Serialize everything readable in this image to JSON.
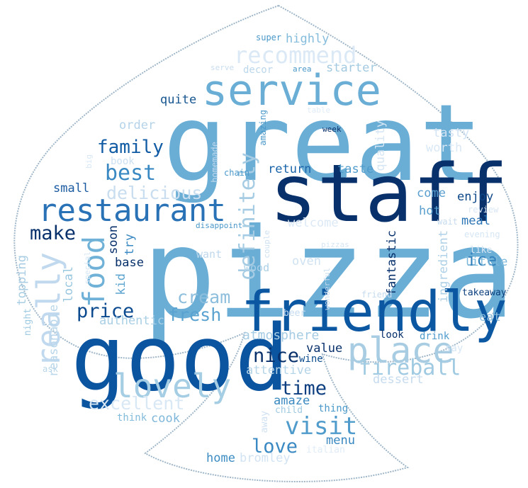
{
  "cloud": {
    "words": [
      {
        "text": "pizza",
        "color": "#6aaed6"
      },
      {
        "text": "great",
        "color": "#6aaed6"
      },
      {
        "text": "staff",
        "color": "#08306b"
      },
      {
        "text": "good",
        "color": "#0a54a0"
      },
      {
        "text": "friendly",
        "color": "#0b57a2"
      },
      {
        "text": "service",
        "color": "#6aaed6"
      },
      {
        "text": "restaurant",
        "color": "#2a72b6"
      },
      {
        "text": "place",
        "color": "#a8cde3"
      },
      {
        "text": "lovely",
        "color": "#a5cde3"
      },
      {
        "text": "recommend",
        "color": "#dbe9f6"
      },
      {
        "text": "really",
        "color": "#c1d9ee"
      },
      {
        "text": "food",
        "color": "#6fb1d7"
      },
      {
        "text": "definitely",
        "color": "#a6cce4"
      },
      {
        "text": "fireball",
        "color": "#9fcae1"
      },
      {
        "text": "visit",
        "color": "#4f9bcb"
      },
      {
        "text": "time",
        "color": "#0c3e80"
      },
      {
        "text": "excellent",
        "color": "#d9e8f5"
      },
      {
        "text": "nice",
        "color": "#08306b"
      },
      {
        "text": "price",
        "color": "#0c4a8f"
      },
      {
        "text": "best",
        "color": "#3a89c2"
      },
      {
        "text": "delicious",
        "color": "#c8ddef"
      },
      {
        "text": "family",
        "color": "#105ba4"
      },
      {
        "text": "make",
        "color": "#08306b"
      },
      {
        "text": "love",
        "color": "#3a89c2"
      },
      {
        "text": "cream",
        "color": "#8dbfdd"
      },
      {
        "text": "fresh",
        "color": "#5aa2cf"
      },
      {
        "text": "ice",
        "color": "#3181bd"
      },
      {
        "text": "atmosphere",
        "color": "#a6cce4"
      },
      {
        "text": "highly",
        "color": "#85bcdc"
      },
      {
        "text": "starter",
        "color": "#a3cae1"
      },
      {
        "text": "quite",
        "color": "#16558f"
      },
      {
        "text": "order",
        "color": "#b4d3e9"
      },
      {
        "text": "authentic",
        "color": "#a9cfe5"
      },
      {
        "text": "value",
        "color": "#08306b"
      },
      {
        "text": "dessert",
        "color": "#c6dbef"
      },
      {
        "text": "attentive",
        "color": "#b4d4e8"
      },
      {
        "text": "amaze",
        "color": "#3988c0"
      },
      {
        "text": "cook",
        "color": "#7fb7da"
      },
      {
        "text": "home",
        "color": "#3c8cc3"
      },
      {
        "text": "bromley",
        "color": "#d2e3f3"
      },
      {
        "text": "menu",
        "color": "#3887c0"
      },
      {
        "text": "meal",
        "color": "#2c75b6"
      },
      {
        "text": "enjoy",
        "color": "#0d4788"
      },
      {
        "text": "hot",
        "color": "#5a9fce"
      },
      {
        "text": "come",
        "color": "#5b9fcf"
      },
      {
        "text": "little",
        "color": "#7db8da"
      },
      {
        "text": "eat",
        "color": "#8cbedc"
      },
      {
        "text": "takeaway",
        "color": "#0b3f7d"
      },
      {
        "text": "fantastic",
        "color": "#08306b"
      },
      {
        "text": "ingredient",
        "color": "#afd1e7"
      },
      {
        "text": "tasty",
        "color": "#d2e3f3"
      },
      {
        "text": "worth",
        "color": "#d9e8f5"
      },
      {
        "text": "taste",
        "color": "#4f9bcb"
      },
      {
        "text": "return",
        "color": "#1a64aa"
      },
      {
        "text": "quality",
        "color": "#d6e6f4"
      },
      {
        "text": "small",
        "color": "#1a5aa0"
      },
      {
        "text": "base",
        "color": "#08306b"
      },
      {
        "text": "soon",
        "color": "#08306b"
      },
      {
        "text": "try",
        "color": "#3a88c2"
      },
      {
        "text": "kid",
        "color": "#5ea5d0"
      },
      {
        "text": "local",
        "color": "#9ac7e0"
      },
      {
        "text": "reasonable",
        "color": "#b9d6ea"
      },
      {
        "text": "topping",
        "color": "#a8cde3"
      },
      {
        "text": "night",
        "color": "#9dc9e1"
      },
      {
        "text": "ask",
        "color": "#b9d6ea"
      },
      {
        "text": "think",
        "color": "#82bbdb"
      },
      {
        "text": "wood",
        "color": "#abd0e6"
      },
      {
        "text": "want",
        "color": "#c0d8ec"
      },
      {
        "text": "welcome",
        "color": "#dce9f6"
      },
      {
        "text": "oven",
        "color": "#d0e2f2"
      },
      {
        "text": "look",
        "color": "#08306b"
      },
      {
        "text": "drink",
        "color": "#4f9bcb"
      },
      {
        "text": "say",
        "color": "#d6e6f4"
      },
      {
        "text": "beer",
        "color": "#c5dbef"
      },
      {
        "text": "wine",
        "color": "#0a4b8c"
      },
      {
        "text": "child",
        "color": "#9fcae1"
      },
      {
        "text": "thing",
        "color": "#4a98c9"
      },
      {
        "text": "away",
        "color": "#cfe1f2"
      },
      {
        "text": "italian",
        "color": "#e0ecf8"
      },
      {
        "text": "super",
        "color": "#4a98c9"
      },
      {
        "text": "decor",
        "color": "#bcd7eb"
      },
      {
        "text": "area",
        "color": "#4a98c9"
      },
      {
        "text": "serve",
        "color": "#c9ddf0"
      },
      {
        "text": "table",
        "color": "#e0ecf8"
      },
      {
        "text": "week",
        "color": "#08306b"
      },
      {
        "text": "amazing",
        "color": "#4a98c9"
      },
      {
        "text": "homemade",
        "color": "#c3daee"
      },
      {
        "text": "book",
        "color": "#cde0f1"
      },
      {
        "text": "big",
        "color": "#dae8f5"
      },
      {
        "text": "chain",
        "color": "#4a98c9"
      },
      {
        "text": "disappoint",
        "color": "#4a98c9"
      },
      {
        "text": "couple",
        "color": "#cfe1f2"
      },
      {
        "text": "special",
        "color": "#d6e6f4"
      },
      {
        "text": "pizzas",
        "color": "#d6e6f4"
      },
      {
        "text": "wonderful",
        "color": "#c6dbef"
      },
      {
        "text": "friend",
        "color": "#c6dbef"
      },
      {
        "text": "like",
        "color": "#d9e7f5"
      },
      {
        "text": "review",
        "color": "#d9e7f5"
      },
      {
        "text": "wait",
        "color": "#c6dbef"
      },
      {
        "text": "evening",
        "color": "#d6e6f4"
      }
    ]
  }
}
